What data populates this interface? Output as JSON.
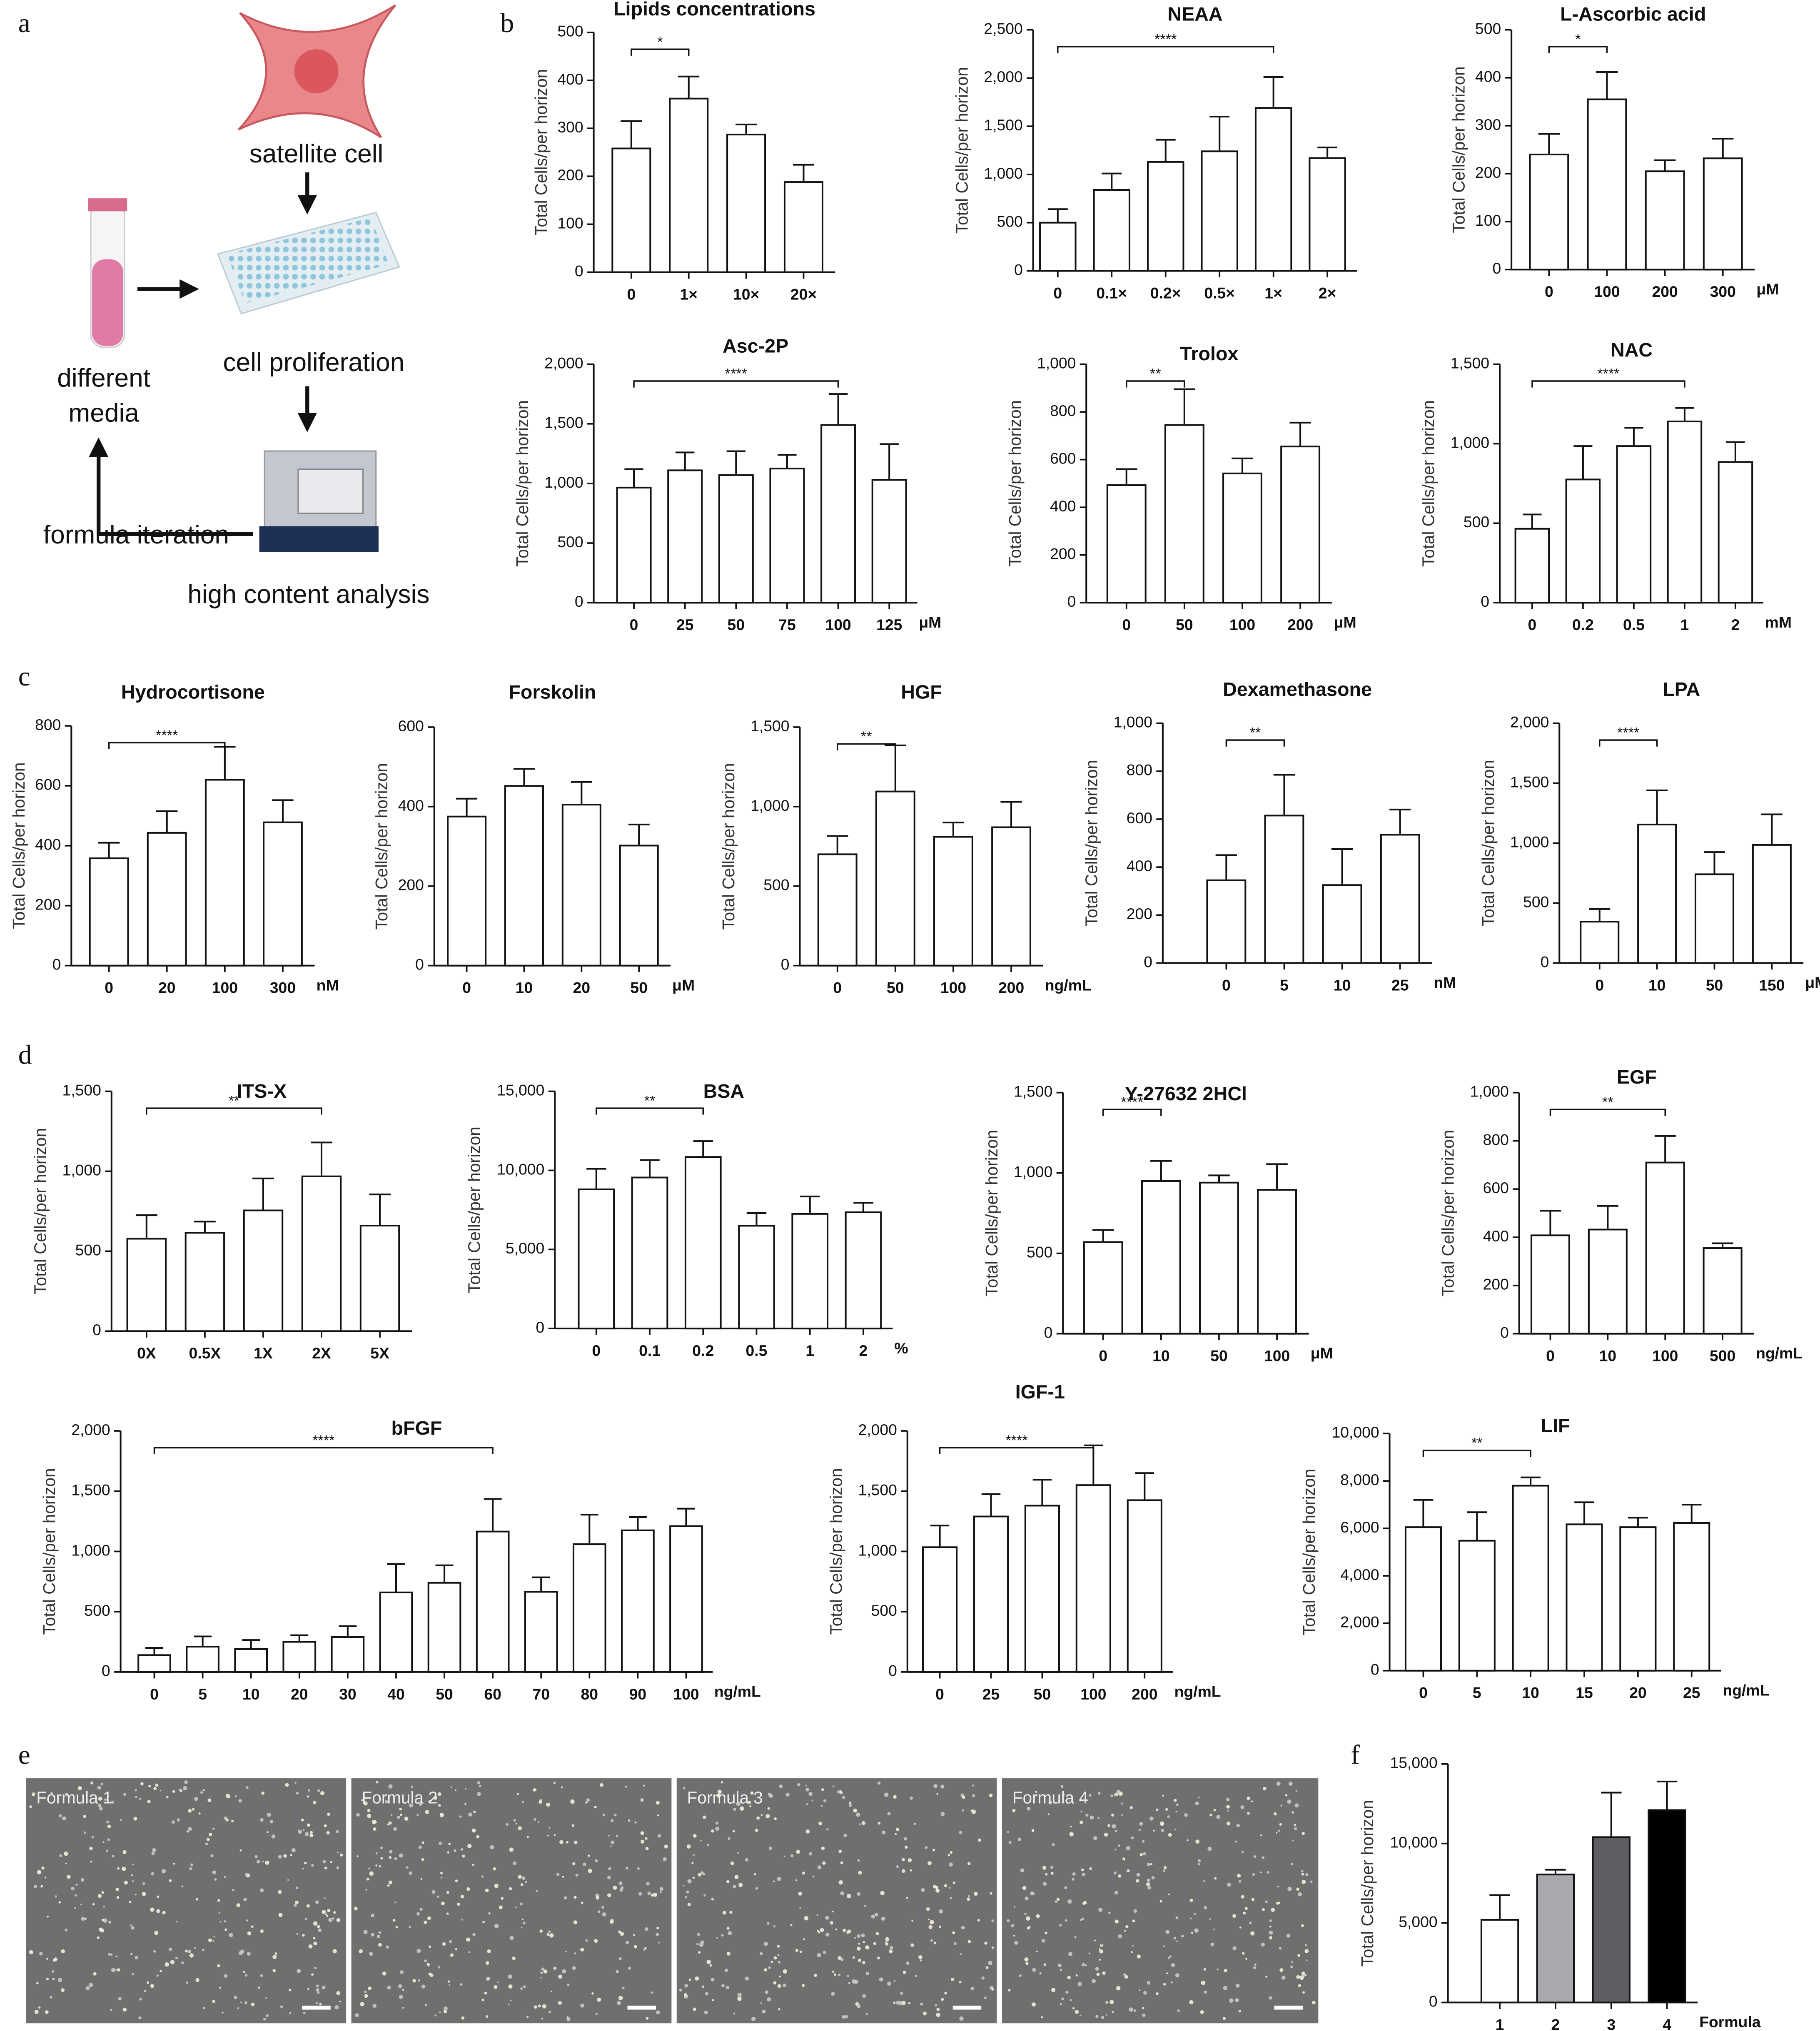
{
  "panels": [
    "a",
    "b",
    "c",
    "d",
    "e",
    "f"
  ],
  "diagram": {
    "cell_label": "satellite cell",
    "plate_label": "cell proliferation",
    "media_label": [
      "different",
      "media"
    ],
    "loop_label": "formula iteration",
    "machine_label": "high content analysis"
  },
  "micrographs": {
    "labels": [
      "Formula 1",
      "Formula 2",
      "Formula 3",
      "Formula 4"
    ]
  },
  "chart_data": [
    {
      "type": "bar",
      "title": "Lipids concentrations",
      "ylabel": "Total Cells/per horizon",
      "color": "#ffffff",
      "categories": [
        "0",
        "1×",
        "10×",
        "20×"
      ],
      "values": [
        258,
        362,
        287,
        188
      ],
      "errors": [
        57,
        46,
        21,
        36
      ],
      "ylim": [
        0,
        500
      ],
      "yticks": [
        0,
        100,
        200,
        300,
        400,
        500
      ],
      "bracket": {
        "label": "*",
        "from": "0",
        "to": "1×"
      }
    },
    {
      "type": "bar",
      "title": "NEAA",
      "ylabel": "Total Cells/per horizon",
      "color": "#ffffff",
      "categories": [
        "0",
        "0.1×",
        "0.2×",
        "0.5×",
        "1×",
        "2×"
      ],
      "values": [
        500,
        840,
        1130,
        1240,
        1690,
        1170
      ],
      "errors": [
        140,
        170,
        230,
        360,
        320,
        110
      ],
      "ylim": [
        0,
        2500
      ],
      "yticks": [
        0,
        500,
        {
          "value": 1000,
          "label": "1,000"
        },
        {
          "value": 1500,
          "label": "1,500"
        },
        {
          "value": 2000,
          "label": "2,000"
        },
        {
          "value": 2500,
          "label": "2,500"
        }
      ],
      "bracket": {
        "label": "****",
        "from": "0",
        "to": "1×"
      }
    },
    {
      "type": "bar",
      "title": "L-Ascorbic acid",
      "ylabel": "Total Cells/per horizon",
      "color": "#ffffff",
      "unit": "μM",
      "categories": [
        "0",
        "100",
        "200",
        "300"
      ],
      "values": [
        240,
        355,
        205,
        232
      ],
      "errors": [
        43,
        57,
        23,
        41
      ],
      "ylim": [
        0,
        500
      ],
      "yticks": [
        0,
        100,
        200,
        300,
        400,
        500
      ],
      "bracket": {
        "label": "*",
        "from": "0",
        "to": "100"
      }
    },
    {
      "type": "bar",
      "title": "Asc-2P",
      "ylabel": "Total Cells/per horizon",
      "color": "#ffffff",
      "unit": "μM",
      "categories": [
        "0",
        "25",
        "50",
        "75",
        "100",
        "125"
      ],
      "values": [
        965,
        1110,
        1070,
        1125,
        1490,
        1030
      ],
      "errors": [
        155,
        150,
        200,
        115,
        260,
        300
      ],
      "ylim": [
        0,
        2000
      ],
      "yticks": [
        0,
        500,
        {
          "value": 1000,
          "label": "1,000"
        },
        {
          "value": 1500,
          "label": "1,500"
        },
        {
          "value": 2000,
          "label": "2,000"
        }
      ],
      "bracket": {
        "label": "****",
        "from": "0",
        "to": "100"
      }
    },
    {
      "type": "bar",
      "title": "Trolox",
      "ylabel": "Total Cells/per horizon",
      "color": "#ffffff",
      "unit": "μM",
      "categories": [
        "0",
        "50",
        "100",
        "200"
      ],
      "values": [
        493,
        745,
        542,
        655
      ],
      "errors": [
        67,
        150,
        63,
        100
      ],
      "ylim": [
        0,
        1000
      ],
      "yticks": [
        0,
        200,
        400,
        600,
        800,
        {
          "value": 1000,
          "label": "1,000"
        }
      ],
      "bracket": {
        "label": "**",
        "from": "0",
        "to": "50"
      }
    },
    {
      "type": "bar",
      "title": "NAC",
      "ylabel": "Total Cells/per horizon",
      "color": "#ffffff",
      "unit": "mM",
      "categories": [
        "0",
        "0.2",
        "0.5",
        "1",
        "2"
      ],
      "values": [
        465,
        775,
        985,
        1140,
        885
      ],
      "errors": [
        90,
        210,
        115,
        85,
        125
      ],
      "ylim": [
        0,
        1500
      ],
      "yticks": [
        0,
        500,
        {
          "value": 1000,
          "label": "1,000"
        },
        {
          "value": 1500,
          "label": "1,500"
        }
      ],
      "bracket": {
        "label": "****",
        "from": "0",
        "to": "1"
      }
    },
    {
      "type": "bar",
      "title": "Hydrocortisone",
      "ylabel": "Total Cells/per horizon",
      "color": "#ffffff",
      "unit": "nM",
      "categories": [
        "0",
        "20",
        "100",
        "300"
      ],
      "values": [
        358,
        443,
        620,
        478
      ],
      "errors": [
        52,
        72,
        110,
        74
      ],
      "ylim": [
        0,
        800
      ],
      "yticks": [
        0,
        200,
        400,
        600,
        800
      ],
      "bracket": {
        "label": "****",
        "from": "0",
        "to": "100"
      }
    },
    {
      "type": "bar",
      "title": "Forskolin",
      "ylabel": "Total Cells/per horizon",
      "color": "#ffffff",
      "unit": "μM",
      "categories": [
        "0",
        "10",
        "20",
        "50"
      ],
      "values": [
        375,
        452,
        405,
        302
      ],
      "errors": [
        45,
        43,
        57,
        53
      ],
      "ylim": [
        0,
        600
      ],
      "yticks": [
        0,
        200,
        400,
        600
      ]
    },
    {
      "type": "bar",
      "title": "HGF",
      "ylabel": "Total Cells/per horizon",
      "color": "#ffffff",
      "unit": "ng/mL",
      "categories": [
        "0",
        "50",
        "100",
        "200"
      ],
      "values": [
        700,
        1095,
        810,
        870
      ],
      "errors": [
        115,
        290,
        90,
        160
      ],
      "ylim": [
        0,
        1500
      ],
      "yticks": [
        0,
        500,
        {
          "value": 1000,
          "label": "1,000"
        },
        {
          "value": 1500,
          "label": "1,500"
        }
      ],
      "bracket": {
        "label": "**",
        "from": "0",
        "to": "50"
      }
    },
    {
      "type": "bar",
      "title": "Dexamethasone",
      "ylabel": "Total Cells/per horizon",
      "color": "#ffffff",
      "unit": "nM",
      "categories": [
        "0",
        "5",
        "10",
        "25"
      ],
      "values": [
        345,
        615,
        325,
        535
      ],
      "errors": [
        105,
        170,
        150,
        105
      ],
      "ylim": [
        0,
        1000
      ],
      "yticks": [
        0,
        200,
        400,
        600,
        800,
        {
          "value": 1000,
          "label": "1,000"
        }
      ],
      "bracket": {
        "label": "**",
        "from": "0",
        "to": "5"
      }
    },
    {
      "type": "bar",
      "title": "LPA",
      "ylabel": "Total Cells/per horizon",
      "color": "#ffffff",
      "unit": "μM",
      "categories": [
        "0",
        "10",
        "50",
        "150"
      ],
      "values": [
        345,
        1155,
        740,
        985
      ],
      "errors": [
        105,
        285,
        185,
        255
      ],
      "ylim": [
        0,
        2000
      ],
      "yticks": [
        0,
        500,
        {
          "value": 1000,
          "label": "1,000"
        },
        {
          "value": 1500,
          "label": "1,500"
        },
        {
          "value": 2000,
          "label": "2,000"
        }
      ],
      "bracket": {
        "label": "****",
        "from": "0",
        "to": "10"
      }
    },
    {
      "type": "bar",
      "title": "ITS-X",
      "ylabel": "Total Cells/per horizon",
      "color": "#ffffff",
      "categories": [
        "0X",
        "0.5X",
        "1X",
        "2X",
        "5X"
      ],
      "values": [
        578,
        615,
        755,
        968,
        660
      ],
      "errors": [
        147,
        70,
        200,
        212,
        195
      ],
      "ylim": [
        0,
        1500
      ],
      "yticks": [
        0,
        500,
        {
          "value": 1000,
          "label": "1,000"
        },
        {
          "value": 1500,
          "label": "1,500"
        }
      ],
      "bracket": {
        "label": "**",
        "from": "0X",
        "to": "2X"
      }
    },
    {
      "type": "bar",
      "title": "BSA",
      "ylabel": "Total Cells/per horizon",
      "color": "#ffffff",
      "unit": "%",
      "categories": [
        "0",
        "0.1",
        "0.2",
        "0.5",
        "1",
        "2"
      ],
      "values": [
        8800,
        9550,
        10850,
        6500,
        7250,
        7350
      ],
      "errors": [
        1300,
        1100,
        1000,
        800,
        1100,
        600
      ],
      "ylim": [
        0,
        15000
      ],
      "yticks": [
        0,
        {
          "value": 5000,
          "label": "5,000"
        },
        {
          "value": 10000,
          "label": "10,000"
        },
        {
          "value": 15000,
          "label": "15,000"
        }
      ],
      "bracket": {
        "label": "**",
        "from": "0",
        "to": "0.2"
      }
    },
    {
      "type": "bar",
      "title": "Y-27632 2HCl",
      "ylabel": "Total Cells/per horizon",
      "color": "#ffffff",
      "unit": "μM",
      "categories": [
        "0",
        "10",
        "50",
        "100"
      ],
      "values": [
        570,
        950,
        940,
        895
      ],
      "errors": [
        75,
        125,
        45,
        160
      ],
      "ylim": [
        0,
        1500
      ],
      "yticks": [
        0,
        500,
        {
          "value": 1000,
          "label": "1,000"
        },
        {
          "value": 1500,
          "label": "1,500"
        }
      ],
      "bracket": {
        "label": "****",
        "from": "0",
        "to": "10"
      }
    },
    {
      "type": "bar",
      "title": "EGF",
      "ylabel": "Total Cells/per horizon",
      "color": "#ffffff",
      "unit": "ng/mL",
      "categories": [
        "0",
        "10",
        "100",
        "500"
      ],
      "values": [
        408,
        432,
        710,
        355
      ],
      "errors": [
        102,
        98,
        110,
        20
      ],
      "ylim": [
        0,
        1000
      ],
      "yticks": [
        0,
        200,
        400,
        600,
        800,
        {
          "value": 1000,
          "label": "1,000"
        }
      ],
      "bracket": {
        "label": "**",
        "from": "0",
        "to": "100"
      }
    },
    {
      "type": "bar",
      "title": "bFGF",
      "ylabel": "Total Cells/per horizon",
      "color": "#ffffff",
      "unit": "ng/mL",
      "categories": [
        "0",
        "5",
        "10",
        "20",
        "30",
        "40",
        "50",
        "60",
        "70",
        "80",
        "90",
        "100"
      ],
      "values": [
        140,
        210,
        190,
        250,
        290,
        660,
        740,
        1165,
        665,
        1060,
        1175,
        1210
      ],
      "errors": [
        60,
        85,
        75,
        55,
        90,
        235,
        145,
        270,
        120,
        245,
        110,
        145
      ],
      "ylim": [
        0,
        2000
      ],
      "yticks": [
        0,
        500,
        {
          "value": 1000,
          "label": "1,000"
        },
        {
          "value": 1500,
          "label": "1,500"
        },
        {
          "value": 2000,
          "label": "2,000"
        }
      ],
      "bracket": {
        "label": "****",
        "from": "0",
        "to": "60"
      }
    },
    {
      "type": "bar",
      "title": "IGF-1",
      "ylabel": "Total Cells/per horizon",
      "color": "#ffffff",
      "unit": "ng/mL",
      "categories": [
        "0",
        "25",
        "50",
        "100",
        "200"
      ],
      "values": [
        1035,
        1290,
        1380,
        1550,
        1425
      ],
      "errors": [
        180,
        185,
        215,
        330,
        225
      ],
      "ylim": [
        0,
        2000
      ],
      "yticks": [
        0,
        500,
        {
          "value": 1000,
          "label": "1,000"
        },
        {
          "value": 1500,
          "label": "1,500"
        },
        {
          "value": 2000,
          "label": "2,000"
        }
      ],
      "bracket": {
        "label": "****",
        "from": "0",
        "to": "100"
      }
    },
    {
      "type": "bar",
      "title": "LIF",
      "ylabel": "Total Cells/per horizon",
      "color": "#ffffff",
      "unit": "ng/mL",
      "categories": [
        "0",
        "5",
        "10",
        "15",
        "20",
        "25"
      ],
      "values": [
        6050,
        5480,
        7800,
        6170,
        6050,
        6230
      ],
      "errors": [
        1150,
        1200,
        350,
        930,
        400,
        770
      ],
      "ylim": [
        0,
        10000
      ],
      "yticks": [
        0,
        {
          "value": 2000,
          "label": "2,000"
        },
        {
          "value": 4000,
          "label": "4,000"
        },
        {
          "value": 6000,
          "label": "6,000"
        },
        {
          "value": 8000,
          "label": "8,000"
        },
        {
          "value": 10000,
          "label": "10,000"
        }
      ],
      "bracket": {
        "label": "**",
        "from": "0",
        "to": "10"
      }
    },
    {
      "type": "bar",
      "ylabel": "Total Cells/per horizon",
      "colors": [
        "#ffffff",
        "#a9a9ad",
        "#5e5e62",
        "#000000"
      ],
      "unit": "Formula",
      "categories": [
        "1",
        "2",
        "3",
        "4"
      ],
      "values": [
        5200,
        8050,
        10400,
        12100
      ],
      "errors": [
        1550,
        300,
        2800,
        1800
      ],
      "ylim": [
        0,
        15000
      ],
      "yticks": [
        0,
        {
          "value": 5000,
          "label": "5,000"
        },
        {
          "value": 10000,
          "label": "10,000"
        },
        {
          "value": 15000,
          "label": "15,000"
        }
      ]
    }
  ]
}
